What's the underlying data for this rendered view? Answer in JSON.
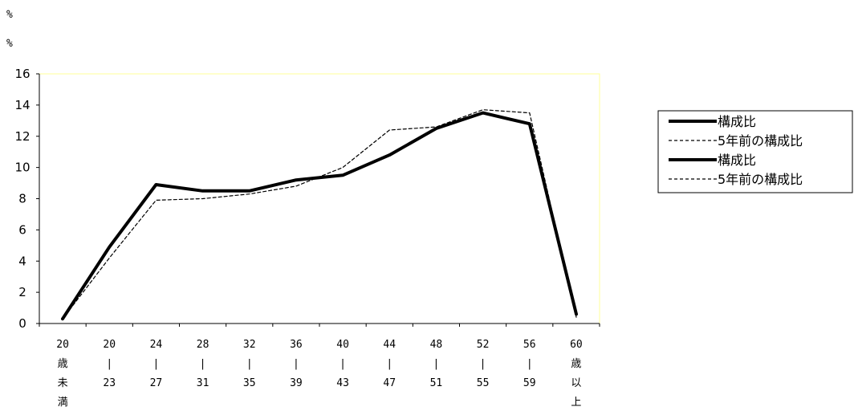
{
  "units": [
    "%",
    "%"
  ],
  "chart_data": {
    "type": "line",
    "categories": [
      [
        "20",
        "歳",
        "未",
        "満"
      ],
      [
        "20",
        "|",
        "23"
      ],
      [
        "24",
        "|",
        "27"
      ],
      [
        "28",
        "|",
        "31"
      ],
      [
        "32",
        "|",
        "35"
      ],
      [
        "36",
        "|",
        "39"
      ],
      [
        "40",
        "|",
        "43"
      ],
      [
        "44",
        "|",
        "47"
      ],
      [
        "48",
        "|",
        "51"
      ],
      [
        "52",
        "|",
        "55"
      ],
      [
        "56",
        "|",
        "59"
      ],
      [
        "60",
        "歳",
        "以",
        "上"
      ]
    ],
    "series": [
      {
        "name": "構成比",
        "style": "solid",
        "color": "#000000",
        "values": [
          0.3,
          4.9,
          8.9,
          8.5,
          8.5,
          9.2,
          9.5,
          10.8,
          12.5,
          13.5,
          12.8,
          0.6
        ]
      },
      {
        "name": "5年前の構成比",
        "style": "dashed",
        "color": "#000000",
        "values": [
          0.3,
          4.2,
          7.9,
          8.0,
          8.3,
          8.8,
          10.0,
          12.4,
          12.6,
          13.7,
          13.5,
          0.4
        ]
      }
    ],
    "legend_entries": [
      {
        "label": "構成比",
        "style": "solid"
      },
      {
        "label": "5年前の構成比",
        "style": "dashed"
      },
      {
        "label": "構成比",
        "style": "solid"
      },
      {
        "label": "5年前の構成比",
        "style": "dashed"
      }
    ],
    "ylim": [
      0,
      16
    ],
    "yticks": [
      0,
      2,
      4,
      6,
      8,
      10,
      12,
      14,
      16
    ],
    "grid": false,
    "legend_position": "right",
    "plot_border_color": "#ffff99"
  }
}
